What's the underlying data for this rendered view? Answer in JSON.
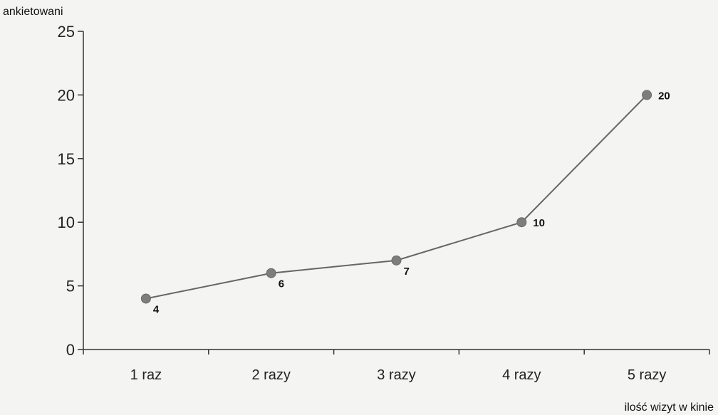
{
  "chart_data": {
    "type": "line",
    "categories": [
      "1 raz",
      "2 razy",
      "3 razy",
      "4 razy",
      "5 razy"
    ],
    "series": [
      {
        "values": [
          4,
          6,
          7,
          10,
          20
        ]
      }
    ],
    "ylabel": "ankietowani",
    "xlabel": "ilość wizyt w kinie",
    "ylim": [
      0,
      25
    ],
    "yticks": [
      0,
      5,
      10,
      15,
      20,
      25
    ],
    "grid": false,
    "data_labels": true,
    "colors": {
      "line": "#666666",
      "marker": "#7d7d7d"
    }
  }
}
